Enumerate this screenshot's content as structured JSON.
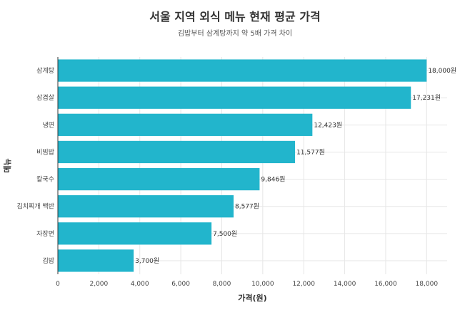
{
  "chart_data": {
    "type": "bar",
    "orientation": "horizontal",
    "title": "서울 지역 외식 메뉴 현재 평균 가격",
    "subtitle": "김밥부터 삼계탕까지 약 5배 가격 차이",
    "xlabel": "가격(원)",
    "ylabel": "메뉴",
    "xlim": [
      0,
      19000
    ],
    "xticks": [
      0,
      2000,
      4000,
      6000,
      8000,
      10000,
      12000,
      14000,
      16000,
      18000
    ],
    "xtick_labels": [
      "0",
      "2,000",
      "4,000",
      "6,000",
      "8,000",
      "10,000",
      "12,000",
      "14,000",
      "16,000",
      "18,000"
    ],
    "categories": [
      "삼계탕",
      "삼겹살",
      "냉면",
      "비빔밥",
      "칼국수",
      "김치찌개 백반",
      "자장면",
      "김밥"
    ],
    "values": [
      18000,
      17231,
      12423,
      11577,
      9846,
      8577,
      7500,
      3700
    ],
    "value_labels": [
      "18,000원",
      "17,231원",
      "12,423원",
      "11,577원",
      "9,846원",
      "8,577원",
      "7,500원",
      "3,700원"
    ],
    "bar_color": "#22b5cc",
    "grid": true
  }
}
